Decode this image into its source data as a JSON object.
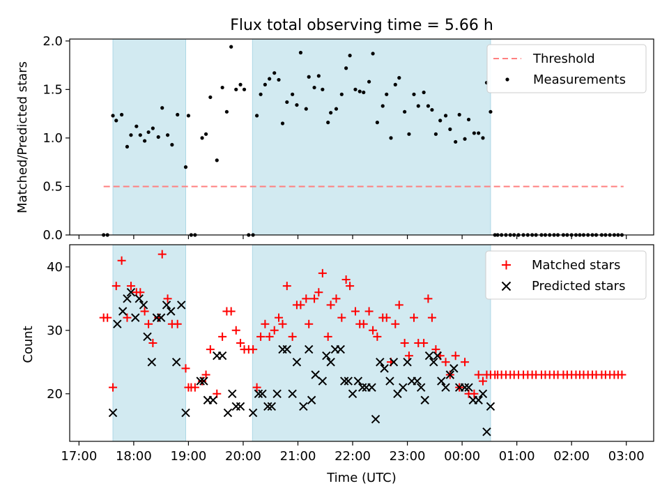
{
  "chart_data": {
    "title": "Flux total observing time = 5.66 h",
    "xlabel": "Time (UTC)",
    "x_unit": "hours since 17:00 UTC",
    "xlim": [
      -0.17,
      10.5
    ],
    "x_tick_values": [
      0,
      1,
      2,
      3,
      4,
      5,
      6,
      7,
      8,
      9,
      10
    ],
    "x_tick_labels": [
      "17:00",
      "18:00",
      "19:00",
      "20:00",
      "21:00",
      "22:00",
      "23:00",
      "00:00",
      "01:00",
      "02:00",
      "03:00"
    ],
    "shaded_intervals": [
      [
        0.62,
        1.95
      ],
      [
        3.17,
        7.52
      ]
    ],
    "shade_color": "#add8e6",
    "panels": [
      {
        "type": "scatter",
        "ylabel": "Matched/Predicted stars",
        "ylim": [
          0,
          2.02
        ],
        "y_tick_values": [
          0,
          0.5,
          1.0,
          1.5,
          2.0
        ],
        "y_tick_labels": [
          "0.0",
          "0.5",
          "1.0",
          "1.5",
          "2.0"
        ],
        "threshold": {
          "name": "Threshold",
          "y": 0.5,
          "x_range": [
            0.45,
            9.95
          ],
          "color": "#ff7f7f"
        },
        "legend": [
          "Threshold",
          "Measurements"
        ],
        "series": [
          {
            "name": "Measurements",
            "color": "#000000",
            "x": [
              0.45,
              0.52,
              0.62,
              0.68,
              0.78,
              0.88,
              0.95,
              1.05,
              1.12,
              1.2,
              1.27,
              1.35,
              1.45,
              1.52,
              1.62,
              1.7,
              1.8,
              1.95,
              2.0,
              2.05,
              2.12,
              2.25,
              2.32,
              2.4,
              2.52,
              2.62,
              2.7,
              2.78,
              2.87,
              2.95,
              3.02,
              3.1,
              3.18,
              3.25,
              3.32,
              3.4,
              3.48,
              3.57,
              3.65,
              3.72,
              3.8,
              3.9,
              3.98,
              4.05,
              4.15,
              4.2,
              4.3,
              4.38,
              4.45,
              4.55,
              4.6,
              4.7,
              4.8,
              4.88,
              4.95,
              5.05,
              5.13,
              5.2,
              5.3,
              5.37,
              5.45,
              5.55,
              5.62,
              5.7,
              5.78,
              5.85,
              5.95,
              6.03,
              6.12,
              6.2,
              6.3,
              6.38,
              6.45,
              6.52,
              6.6,
              6.7,
              6.78,
              6.88,
              6.95,
              7.05,
              7.12,
              7.22,
              7.3,
              7.38,
              7.45,
              7.52,
              7.6,
              7.65,
              7.72,
              7.8,
              7.88,
              7.95,
              8.03,
              8.12,
              8.2,
              8.28,
              8.35,
              8.45,
              8.52,
              8.6,
              8.68,
              8.75,
              8.85,
              8.92,
              9.0,
              9.08,
              9.15,
              9.22,
              9.3,
              9.38,
              9.45,
              9.55,
              9.62,
              9.7,
              9.78,
              9.85,
              9.92
            ],
            "y": [
              0,
              0,
              1.23,
              1.18,
              1.24,
              0.91,
              1.03,
              1.12,
              1.03,
              0.97,
              1.06,
              1.1,
              1.01,
              1.31,
              1.03,
              0.93,
              1.24,
              0.7,
              1.23,
              0,
              0,
              1.0,
              1.04,
              1.42,
              0.77,
              1.52,
              1.27,
              1.94,
              1.5,
              1.55,
              1.5,
              0,
              0,
              1.23,
              1.45,
              1.55,
              1.61,
              1.67,
              1.6,
              1.15,
              1.37,
              1.45,
              1.34,
              1.88,
              1.3,
              1.63,
              1.52,
              1.64,
              1.5,
              1.16,
              1.26,
              1.3,
              1.45,
              1.72,
              1.85,
              1.5,
              1.48,
              1.47,
              1.58,
              1.87,
              1.16,
              1.33,
              1.45,
              1.0,
              1.55,
              1.62,
              1.27,
              1.04,
              1.45,
              1.33,
              1.47,
              1.33,
              1.29,
              1.04,
              1.18,
              1.23,
              1.09,
              0.96,
              1.24,
              0.99,
              1.19,
              1.05,
              1.05,
              1.0,
              1.57,
              1.27,
              0,
              0,
              0,
              0,
              0,
              0,
              0,
              0,
              0,
              0,
              0,
              0,
              0,
              0,
              0,
              0,
              0,
              0,
              0,
              0,
              0,
              0,
              0,
              0,
              0,
              0,
              0,
              0,
              0,
              0,
              0
            ]
          }
        ]
      },
      {
        "type": "scatter",
        "ylabel": "Count",
        "ylim": [
          12.5,
          43.5
        ],
        "y_tick_values": [
          20,
          30,
          40
        ],
        "y_tick_labels": [
          "20",
          "30",
          "40"
        ],
        "legend": [
          "Matched stars",
          "Predicted stars"
        ],
        "series": [
          {
            "name": "Matched stars",
            "marker": "+",
            "color": "#ff0000",
            "x": [
              0.45,
              0.52,
              0.62,
              0.68,
              0.78,
              0.88,
              0.95,
              1.05,
              1.12,
              1.2,
              1.27,
              1.35,
              1.45,
              1.52,
              1.62,
              1.7,
              1.8,
              1.95,
              2.0,
              2.05,
              2.12,
              2.25,
              2.32,
              2.4,
              2.52,
              2.62,
              2.7,
              2.78,
              2.87,
              2.95,
              3.02,
              3.1,
              3.18,
              3.25,
              3.32,
              3.4,
              3.48,
              3.57,
              3.65,
              3.72,
              3.8,
              3.9,
              3.98,
              4.05,
              4.15,
              4.2,
              4.3,
              4.38,
              4.45,
              4.55,
              4.6,
              4.7,
              4.8,
              4.88,
              4.95,
              5.05,
              5.13,
              5.2,
              5.3,
              5.37,
              5.45,
              5.55,
              5.62,
              5.7,
              5.78,
              5.85,
              5.95,
              6.03,
              6.12,
              6.2,
              6.3,
              6.38,
              6.45,
              6.52,
              6.6,
              6.7,
              6.78,
              6.88,
              6.95,
              7.05,
              7.12,
              7.22,
              7.3,
              7.38,
              7.45,
              7.52,
              7.6,
              7.65,
              7.72,
              7.8,
              7.88,
              7.95,
              8.03,
              8.12,
              8.2,
              8.28,
              8.35,
              8.45,
              8.52,
              8.6,
              8.68,
              8.75,
              8.85,
              8.92,
              9.0,
              9.08,
              9.15,
              9.22,
              9.3,
              9.38,
              9.45,
              9.55,
              9.62,
              9.7,
              9.78,
              9.85,
              9.92
            ],
            "y": [
              32,
              32,
              21,
              37,
              41,
              32,
              37,
              36,
              36,
              33,
              31,
              28,
              32,
              42,
              35,
              31,
              31,
              24,
              21,
              21,
              21,
              22,
              23,
              27,
              20,
              29,
              33,
              33,
              30,
              28,
              27,
              27,
              27,
              21,
              29,
              31,
              29,
              30,
              32,
              31,
              37,
              29,
              34,
              34,
              35,
              31,
              35,
              36,
              39,
              29,
              34,
              35,
              32,
              38,
              37,
              33,
              31,
              31,
              33,
              30,
              29,
              32,
              32,
              25,
              31,
              34,
              28,
              26,
              32,
              28,
              28,
              35,
              32,
              27,
              26,
              25,
              23,
              26,
              21,
              25,
              20,
              20,
              23,
              22,
              23,
              23,
              23,
              23,
              23,
              23,
              23,
              23,
              23,
              23,
              23,
              23,
              23,
              23,
              23,
              23,
              23,
              23,
              23,
              23,
              23,
              23,
              23,
              23,
              23,
              23,
              23,
              23,
              23,
              23,
              23,
              23,
              23
            ]
          },
          {
            "name": "Predicted stars",
            "marker": "x",
            "color": "#000000",
            "x": [
              0.62,
              0.7,
              0.8,
              0.88,
              0.95,
              1.03,
              1.1,
              1.18,
              1.25,
              1.33,
              1.42,
              1.5,
              1.6,
              1.68,
              1.78,
              1.87,
              1.95,
              2.22,
              2.28,
              2.35,
              2.45,
              2.52,
              2.62,
              2.72,
              2.8,
              2.87,
              2.95,
              3.18,
              3.28,
              3.35,
              3.45,
              3.52,
              3.62,
              3.72,
              3.8,
              3.9,
              3.98,
              4.1,
              4.2,
              4.25,
              4.32,
              4.45,
              4.52,
              4.6,
              4.68,
              4.78,
              4.85,
              4.92,
              5.0,
              5.1,
              5.18,
              5.25,
              5.35,
              5.42,
              5.5,
              5.58,
              5.68,
              5.75,
              5.82,
              5.92,
              6.0,
              6.08,
              6.18,
              6.25,
              6.32,
              6.4,
              6.48,
              6.55,
              6.62,
              6.7,
              6.78,
              6.85,
              6.95,
              7.05,
              7.12,
              7.2,
              7.3,
              7.38,
              7.45,
              7.52
            ],
            "y": [
              17,
              31,
              33,
              35,
              36,
              32,
              35,
              34,
              29,
              25,
              32,
              32,
              34,
              33,
              25,
              34,
              17,
              22,
              22,
              19,
              19,
              26,
              26,
              17,
              20,
              18,
              18,
              17,
              20,
              20,
              18,
              18,
              20,
              27,
              27,
              20,
              25,
              18,
              27,
              19,
              23,
              22,
              26,
              25,
              27,
              27,
              22,
              22,
              20,
              22,
              21,
              21,
              21,
              16,
              25,
              24,
              22,
              25,
              20,
              21,
              25,
              22,
              22,
              21,
              19,
              26,
              25,
              26,
              22,
              21,
              23,
              24,
              21,
              21,
              21,
              19,
              19,
              20,
              14,
              18
            ]
          }
        ]
      }
    ]
  }
}
